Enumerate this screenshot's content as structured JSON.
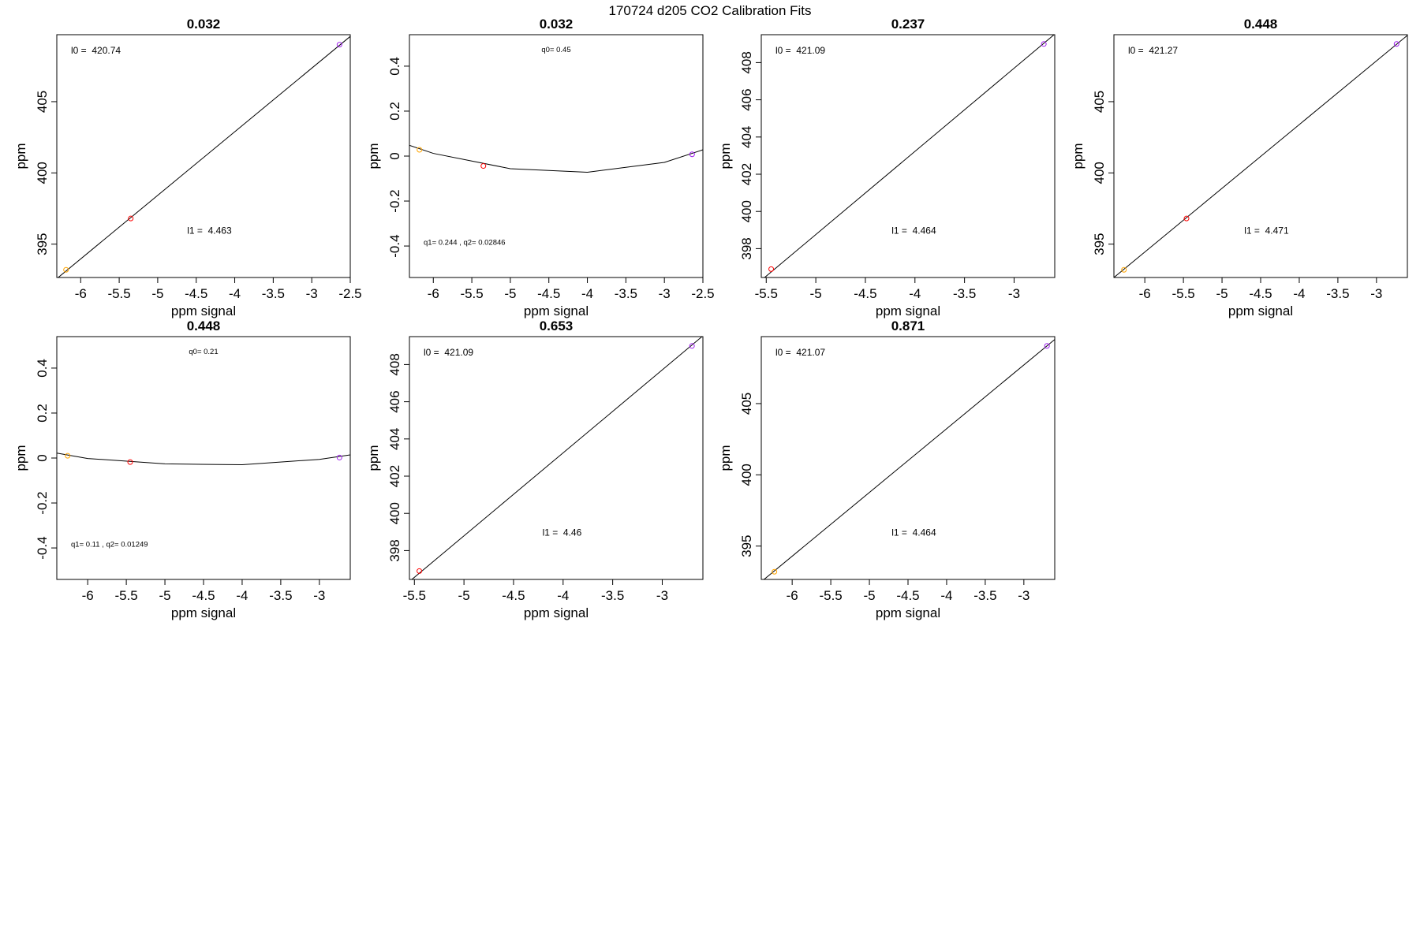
{
  "title": "170724   d205   CO2 Calibration Fits",
  "chart_data": [
    {
      "type": "scatter",
      "title": "0.032",
      "xlabel": "ppm signal",
      "ylabel": "ppm",
      "xlim": [
        -6.31,
        -2.5
      ],
      "xticks": [
        -6.0,
        -5.5,
        -5.0,
        -4.5,
        -4.0,
        -3.5,
        -3.0,
        -2.5
      ],
      "ylim": [
        392.66,
        409.7
      ],
      "yticks": [
        395,
        400,
        405
      ],
      "points": {
        "x": [
          -6.19,
          -5.35,
          -2.64
        ],
        "values": [
          393.2,
          396.8,
          409.0
        ],
        "colors": [
          "#ffa500",
          "#ff0000",
          "#a020f0"
        ]
      },
      "fit": {
        "x": [
          -6.31,
          -2.5
        ],
        "values": [
          392.58,
          409.58
        ],
        "color": "#000000"
      },
      "annotations": [
        "l0 =  420.74",
        "l1 =  4.463"
      ]
    },
    {
      "type": "scatter",
      "title": "0.032",
      "xlabel": "ppm signal",
      "ylabel": "ppm",
      "xlim": [
        -6.31,
        -2.5
      ],
      "xticks": [
        -6.0,
        -5.5,
        -5.0,
        -4.5,
        -4.0,
        -3.5,
        -3.0,
        -2.5
      ],
      "ylim": [
        -0.54,
        0.54
      ],
      "yticks": [
        -0.4,
        -0.2,
        0.0,
        0.2,
        0.4
      ],
      "points": {
        "x": [
          -6.18,
          -5.35,
          -2.64
        ],
        "values": [
          0.028,
          -0.044,
          0.008
        ],
        "colors": [
          "#ffa500",
          "#ff0000",
          "#a020f0"
        ]
      },
      "fit": {
        "x": [
          -6.31,
          -6.0,
          -5.0,
          -4.0,
          -3.0,
          -2.5
        ],
        "values": [
          0.048,
          0.012,
          -0.056,
          -0.072,
          -0.028,
          0.028
        ],
        "color": "#000000"
      },
      "annotations": [
        "q0= 0.45",
        "q1= 0.244 , q2= 0.02846"
      ]
    },
    {
      "type": "scatter",
      "title": "0.237",
      "xlabel": "ppm signal",
      "ylabel": "ppm",
      "xlim": [
        -5.55,
        -2.59
      ],
      "xticks": [
        -5.5,
        -5.0,
        -4.5,
        -4.0,
        -3.5,
        -3.0
      ],
      "ylim": [
        396.45,
        409.5
      ],
      "yticks": [
        398,
        400,
        402,
        404,
        406,
        408
      ],
      "points": {
        "x": [
          -5.45,
          -2.7
        ],
        "values": [
          396.9,
          409.0
        ],
        "colors": [
          "#ff0000",
          "#a020f0"
        ]
      },
      "fit": {
        "x": [
          -5.55,
          -2.59
        ],
        "values": [
          396.3,
          409.53
        ],
        "color": "#000000"
      },
      "annotations": [
        "l0 =  421.09",
        "l1 =  4.464"
      ]
    },
    {
      "type": "scatter",
      "title": "0.448",
      "xlabel": "ppm signal",
      "ylabel": "ppm",
      "xlim": [
        -6.4,
        -2.6
      ],
      "xticks": [
        -6.0,
        -5.5,
        -5.0,
        -4.5,
        -4.0,
        -3.5,
        -3.0
      ],
      "ylim": [
        392.66,
        409.7
      ],
      "yticks": [
        395,
        400,
        405
      ],
      "points": {
        "x": [
          -6.27,
          -5.46,
          -2.74
        ],
        "values": [
          393.2,
          396.8,
          409.05
        ],
        "colors": [
          "#ffa500",
          "#ff0000",
          "#a020f0"
        ]
      },
      "fit": {
        "x": [
          -6.4,
          -2.6
        ],
        "values": [
          392.66,
          409.65
        ],
        "color": "#000000"
      },
      "annotations": [
        "l0 =  421.27",
        "l1 =  4.471"
      ]
    },
    {
      "type": "scatter",
      "title": "0.448",
      "xlabel": "ppm signal",
      "ylabel": "ppm",
      "xlim": [
        -6.4,
        -2.6
      ],
      "xticks": [
        -6.0,
        -5.5,
        -5.0,
        -4.5,
        -4.0,
        -3.5,
        -3.0
      ],
      "ylim": [
        -0.54,
        0.54
      ],
      "yticks": [
        -0.4,
        -0.2,
        0.0,
        0.2,
        0.4
      ],
      "points": {
        "x": [
          -6.26,
          -5.45,
          -2.74
        ],
        "values": [
          0.01,
          -0.018,
          0.002
        ],
        "colors": [
          "#ffa500",
          "#ff0000",
          "#a020f0"
        ]
      },
      "fit": {
        "x": [
          -6.4,
          -6.0,
          -5.0,
          -4.0,
          -3.0,
          -2.6
        ],
        "values": [
          0.022,
          -0.002,
          -0.026,
          -0.03,
          -0.006,
          0.014
        ],
        "color": "#000000"
      },
      "annotations": [
        "q0= 0.21",
        "q1= 0.11 , q2= 0.01249"
      ]
    },
    {
      "type": "scatter",
      "title": "0.653",
      "xlabel": "ppm signal",
      "ylabel": "ppm",
      "xlim": [
        -5.55,
        -2.59
      ],
      "xticks": [
        -5.5,
        -5.0,
        -4.5,
        -4.0,
        -3.5,
        -3.0
      ],
      "ylim": [
        396.45,
        409.5
      ],
      "yticks": [
        398,
        400,
        402,
        404,
        406,
        408
      ],
      "points": {
        "x": [
          -5.45,
          -2.7
        ],
        "values": [
          396.9,
          409.0
        ],
        "colors": [
          "#ff0000",
          "#a020f0"
        ]
      },
      "fit": {
        "x": [
          -5.55,
          -2.59
        ],
        "values": [
          396.34,
          409.54
        ],
        "color": "#000000"
      },
      "annotations": [
        "l0 =  421.09",
        "l1 =  4.46"
      ]
    },
    {
      "type": "scatter",
      "title": "0.871",
      "xlabel": "ppm signal",
      "ylabel": "ppm",
      "xlim": [
        -6.4,
        -2.6
      ],
      "xticks": [
        -6.0,
        -5.5,
        -5.0,
        -4.5,
        -4.0,
        -3.5,
        -3.0
      ],
      "ylim": [
        392.66,
        409.7
      ],
      "yticks": [
        395,
        400,
        405
      ],
      "points": {
        "x": [
          -6.23,
          -2.7
        ],
        "values": [
          393.2,
          409.05
        ],
        "colors": [
          "#ffa500",
          "#a020f0"
        ]
      },
      "fit": {
        "x": [
          -6.4,
          -2.6
        ],
        "values": [
          392.5,
          409.5
        ],
        "color": "#000000"
      },
      "annotations": [
        "l0 =  421.07",
        "l1 =  4.464"
      ]
    }
  ]
}
